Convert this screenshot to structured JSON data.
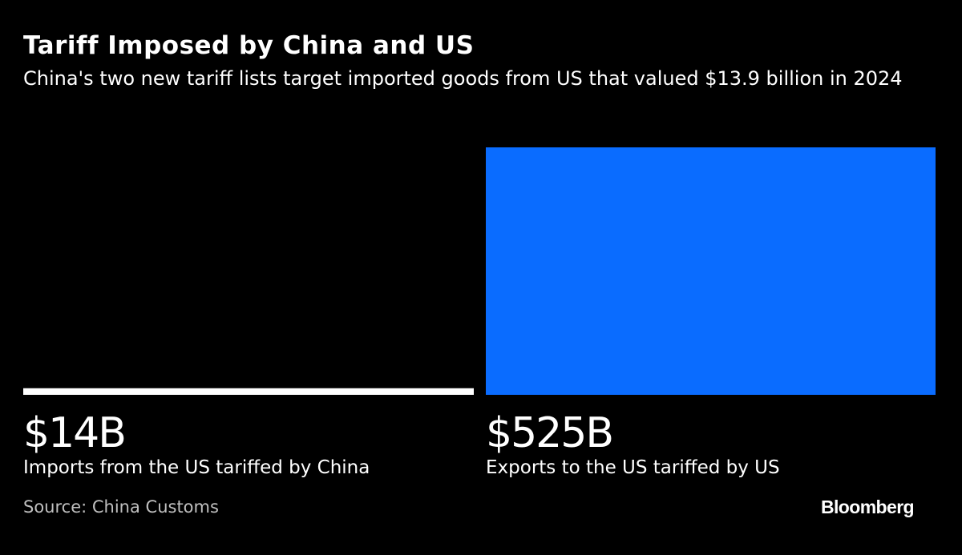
{
  "chart_data": {
    "type": "bar",
    "title": "Tariff Imposed by China and US",
    "subtitle": "China's two new tariff lists target imported goods from US that valued $13.9 billion in 2024",
    "categories": [
      "Imports from the US tariffed by China",
      "Exports to the US tariffed by US"
    ],
    "values": [
      14,
      525
    ],
    "value_labels": [
      "$14B",
      "$525B"
    ],
    "unit": "billion USD",
    "ylim": [
      0,
      525
    ],
    "colors": [
      "#ffffff",
      "#0a6cff"
    ],
    "grid": false,
    "legend": "none"
  },
  "source": "Source: China Customs",
  "brand": "Bloomberg",
  "colors": {
    "background": "#000000",
    "text": "#ffffff",
    "muted": "#bfbfbf"
  }
}
